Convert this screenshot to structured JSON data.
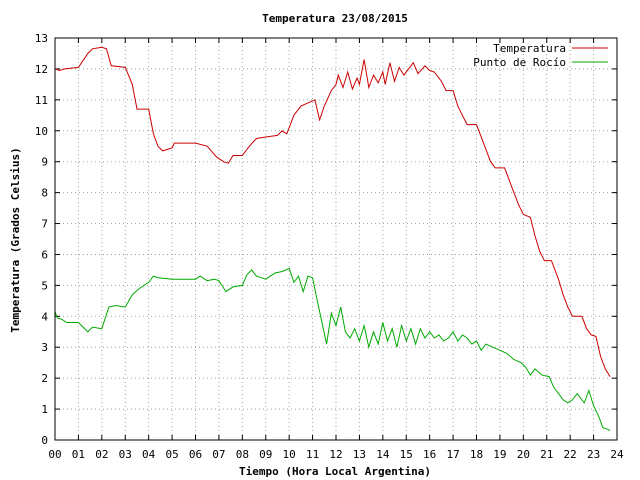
{
  "chart_data": {
    "type": "line",
    "title": "Temperatura 23/08/2015",
    "xlabel": "Tiempo (Hora Local Argentina)",
    "ylabel": "Temperatura (Grados Celsius)",
    "xlim": [
      0,
      24
    ],
    "ylim": [
      0,
      13
    ],
    "x_ticks": [
      "00",
      "01",
      "02",
      "03",
      "04",
      "05",
      "06",
      "07",
      "08",
      "09",
      "10",
      "11",
      "12",
      "13",
      "14",
      "15",
      "16",
      "17",
      "18",
      "19",
      "20",
      "21",
      "22",
      "23",
      "24"
    ],
    "y_ticks": [
      "0",
      "1",
      "2",
      "3",
      "4",
      "5",
      "6",
      "7",
      "8",
      "9",
      "10",
      "11",
      "12",
      "13"
    ],
    "grid": true,
    "legend_position": "top-right",
    "series": [
      {
        "name": "Temperatura",
        "color": "#cc0000",
        "points": [
          [
            0.0,
            12.0
          ],
          [
            0.2,
            11.95
          ],
          [
            0.4,
            12.0
          ],
          [
            1.0,
            12.05
          ],
          [
            1.4,
            12.5
          ],
          [
            1.6,
            12.65
          ],
          [
            2.0,
            12.7
          ],
          [
            2.2,
            12.65
          ],
          [
            2.4,
            12.1
          ],
          [
            3.0,
            12.05
          ],
          [
            3.3,
            11.5
          ],
          [
            3.5,
            10.7
          ],
          [
            4.0,
            10.7
          ],
          [
            4.2,
            9.9
          ],
          [
            4.4,
            9.5
          ],
          [
            4.6,
            9.35
          ],
          [
            5.0,
            9.45
          ],
          [
            5.1,
            9.6
          ],
          [
            6.0,
            9.6
          ],
          [
            6.5,
            9.5
          ],
          [
            6.9,
            9.15
          ],
          [
            7.2,
            9.0
          ],
          [
            7.4,
            8.95
          ],
          [
            7.6,
            9.2
          ],
          [
            8.0,
            9.2
          ],
          [
            8.3,
            9.5
          ],
          [
            8.6,
            9.75
          ],
          [
            9.0,
            9.8
          ],
          [
            9.5,
            9.85
          ],
          [
            9.7,
            10.0
          ],
          [
            9.9,
            9.9
          ],
          [
            10.2,
            10.5
          ],
          [
            10.5,
            10.8
          ],
          [
            10.8,
            10.9
          ],
          [
            11.1,
            11.0
          ],
          [
            11.3,
            10.35
          ],
          [
            11.5,
            10.8
          ],
          [
            11.8,
            11.3
          ],
          [
            12.0,
            11.5
          ],
          [
            12.1,
            11.8
          ],
          [
            12.3,
            11.4
          ],
          [
            12.5,
            11.9
          ],
          [
            12.7,
            11.35
          ],
          [
            12.9,
            11.7
          ],
          [
            13.0,
            11.5
          ],
          [
            13.2,
            12.3
          ],
          [
            13.4,
            11.4
          ],
          [
            13.6,
            11.8
          ],
          [
            13.8,
            11.55
          ],
          [
            14.0,
            11.9
          ],
          [
            14.1,
            11.5
          ],
          [
            14.3,
            12.2
          ],
          [
            14.5,
            11.6
          ],
          [
            14.7,
            12.05
          ],
          [
            14.9,
            11.8
          ],
          [
            15.1,
            12.0
          ],
          [
            15.3,
            12.2
          ],
          [
            15.5,
            11.85
          ],
          [
            15.8,
            12.1
          ],
          [
            16.0,
            11.95
          ],
          [
            16.2,
            11.9
          ],
          [
            16.5,
            11.6
          ],
          [
            16.7,
            11.3
          ],
          [
            17.0,
            11.3
          ],
          [
            17.2,
            10.8
          ],
          [
            17.4,
            10.5
          ],
          [
            17.6,
            10.2
          ],
          [
            18.0,
            10.2
          ],
          [
            18.3,
            9.6
          ],
          [
            18.6,
            9.0
          ],
          [
            18.8,
            8.8
          ],
          [
            19.2,
            8.8
          ],
          [
            19.5,
            8.2
          ],
          [
            19.8,
            7.6
          ],
          [
            20.0,
            7.3
          ],
          [
            20.3,
            7.2
          ],
          [
            20.5,
            6.6
          ],
          [
            20.7,
            6.1
          ],
          [
            20.9,
            5.8
          ],
          [
            21.2,
            5.8
          ],
          [
            21.5,
            5.2
          ],
          [
            21.7,
            4.7
          ],
          [
            21.9,
            4.3
          ],
          [
            22.1,
            4.0
          ],
          [
            22.5,
            4.0
          ],
          [
            22.7,
            3.6
          ],
          [
            22.9,
            3.4
          ],
          [
            23.1,
            3.35
          ],
          [
            23.3,
            2.7
          ],
          [
            23.5,
            2.3
          ],
          [
            23.7,
            2.05
          ]
        ]
      },
      {
        "name": "Punto de Rocío",
        "color": "#00aa00",
        "points": [
          [
            0.0,
            4.15
          ],
          [
            0.1,
            3.95
          ],
          [
            0.3,
            3.9
          ],
          [
            0.5,
            3.8
          ],
          [
            1.0,
            3.8
          ],
          [
            1.2,
            3.65
          ],
          [
            1.4,
            3.5
          ],
          [
            1.6,
            3.65
          ],
          [
            2.0,
            3.6
          ],
          [
            2.3,
            4.3
          ],
          [
            2.6,
            4.35
          ],
          [
            3.0,
            4.3
          ],
          [
            3.3,
            4.7
          ],
          [
            3.6,
            4.9
          ],
          [
            4.0,
            5.1
          ],
          [
            4.2,
            5.3
          ],
          [
            4.4,
            5.25
          ],
          [
            5.0,
            5.2
          ],
          [
            6.0,
            5.2
          ],
          [
            6.2,
            5.3
          ],
          [
            6.5,
            5.15
          ],
          [
            6.8,
            5.2
          ],
          [
            7.0,
            5.15
          ],
          [
            7.3,
            4.8
          ],
          [
            7.6,
            4.95
          ],
          [
            8.0,
            5.0
          ],
          [
            8.2,
            5.35
          ],
          [
            8.4,
            5.5
          ],
          [
            8.6,
            5.3
          ],
          [
            9.0,
            5.2
          ],
          [
            9.4,
            5.4
          ],
          [
            9.7,
            5.45
          ],
          [
            10.0,
            5.55
          ],
          [
            10.2,
            5.1
          ],
          [
            10.4,
            5.3
          ],
          [
            10.6,
            4.8
          ],
          [
            10.8,
            5.3
          ],
          [
            11.0,
            5.25
          ],
          [
            11.2,
            4.5
          ],
          [
            11.4,
            3.8
          ],
          [
            11.6,
            3.1
          ],
          [
            11.8,
            4.1
          ],
          [
            12.0,
            3.7
          ],
          [
            12.2,
            4.3
          ],
          [
            12.4,
            3.5
          ],
          [
            12.6,
            3.3
          ],
          [
            12.8,
            3.6
          ],
          [
            13.0,
            3.2
          ],
          [
            13.2,
            3.7
          ],
          [
            13.4,
            3.0
          ],
          [
            13.6,
            3.5
          ],
          [
            13.8,
            3.1
          ],
          [
            14.0,
            3.8
          ],
          [
            14.2,
            3.2
          ],
          [
            14.4,
            3.6
          ],
          [
            14.6,
            3.0
          ],
          [
            14.8,
            3.7
          ],
          [
            15.0,
            3.2
          ],
          [
            15.2,
            3.6
          ],
          [
            15.4,
            3.1
          ],
          [
            15.6,
            3.6
          ],
          [
            15.8,
            3.3
          ],
          [
            16.0,
            3.5
          ],
          [
            16.2,
            3.3
          ],
          [
            16.4,
            3.4
          ],
          [
            16.6,
            3.2
          ],
          [
            16.8,
            3.3
          ],
          [
            17.0,
            3.5
          ],
          [
            17.2,
            3.2
          ],
          [
            17.4,
            3.4
          ],
          [
            17.6,
            3.3
          ],
          [
            17.8,
            3.1
          ],
          [
            18.0,
            3.2
          ],
          [
            18.2,
            2.9
          ],
          [
            18.4,
            3.1
          ],
          [
            18.7,
            3.0
          ],
          [
            19.0,
            2.9
          ],
          [
            19.3,
            2.8
          ],
          [
            19.6,
            2.6
          ],
          [
            19.9,
            2.5
          ],
          [
            20.1,
            2.35
          ],
          [
            20.3,
            2.1
          ],
          [
            20.5,
            2.3
          ],
          [
            20.8,
            2.1
          ],
          [
            21.1,
            2.05
          ],
          [
            21.3,
            1.7
          ],
          [
            21.5,
            1.5
          ],
          [
            21.7,
            1.3
          ],
          [
            21.9,
            1.2
          ],
          [
            22.1,
            1.3
          ],
          [
            22.3,
            1.5
          ],
          [
            22.6,
            1.2
          ],
          [
            22.8,
            1.6
          ],
          [
            23.0,
            1.1
          ],
          [
            23.2,
            0.8
          ],
          [
            23.4,
            0.4
          ],
          [
            23.6,
            0.35
          ],
          [
            23.7,
            0.3
          ]
        ]
      }
    ]
  }
}
